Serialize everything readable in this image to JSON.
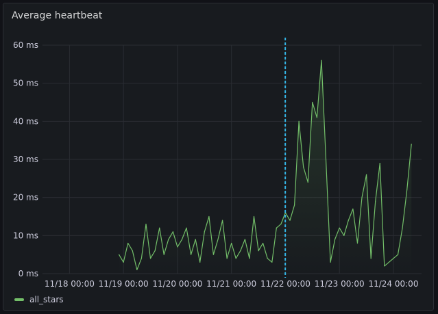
{
  "panel": {
    "title": "Average heartbeat"
  },
  "colors": {
    "series": "#73bf69",
    "annotation": "#33b5e5",
    "grid": "#2a2d33",
    "tick_text": "#ccccdc",
    "panel_bg": "#181b1f"
  },
  "chart_data": {
    "type": "area",
    "grid": true,
    "legend_position": "bottom-left",
    "y_unit": "ms",
    "ylim": [
      0,
      60
    ],
    "yticks": [
      0,
      10,
      20,
      30,
      40,
      50,
      60
    ],
    "ytick_labels": [
      "0 ms",
      "10 ms",
      "20 ms",
      "30 ms",
      "40 ms",
      "50 ms",
      "60 ms"
    ],
    "x_domain_days": [
      "11/17 12:00",
      "11/24 12:30"
    ],
    "xtick_labels": [
      "11/18 00:00",
      "11/19 00:00",
      "11/20 00:00",
      "11/21 00:00",
      "11/22 00:00",
      "11/23 00:00",
      "11/24 00:00"
    ],
    "annotation": {
      "x": "11/21 23:55",
      "style": "dashed"
    },
    "series": [
      {
        "name": "all_stars",
        "x": [
          "11/18 22:00",
          "11/19 00:00",
          "11/19 02:00",
          "11/19 04:00",
          "11/19 06:00",
          "11/19 08:00",
          "11/19 10:00",
          "11/19 12:00",
          "11/19 14:00",
          "11/19 16:00",
          "11/19 18:00",
          "11/19 20:00",
          "11/19 22:00",
          "11/20 00:00",
          "11/20 02:00",
          "11/20 04:00",
          "11/20 06:00",
          "11/20 08:00",
          "11/20 10:00",
          "11/20 12:00",
          "11/20 14:00",
          "11/20 16:00",
          "11/20 18:00",
          "11/20 20:00",
          "11/20 22:00",
          "11/21 00:00",
          "11/21 02:00",
          "11/21 04:00",
          "11/21 06:00",
          "11/21 08:00",
          "11/21 10:00",
          "11/21 12:00",
          "11/21 14:00",
          "11/21 16:00",
          "11/21 18:00",
          "11/21 20:00",
          "11/21 22:00",
          "11/22 00:00",
          "11/22 02:00",
          "11/22 04:00",
          "11/22 06:00",
          "11/22 08:00",
          "11/22 10:00",
          "11/22 12:00",
          "11/22 14:00",
          "11/22 16:00",
          "11/22 18:00",
          "11/22 20:00",
          "11/22 22:00",
          "11/23 00:00",
          "11/23 02:00",
          "11/23 04:00",
          "11/23 06:00",
          "11/23 08:00",
          "11/23 10:00",
          "11/23 12:00",
          "11/23 14:00",
          "11/23 16:00",
          "11/23 18:00",
          "11/23 20:00",
          "11/23 22:00",
          "11/24 00:00",
          "11/24 02:00",
          "11/24 04:00",
          "11/24 06:00",
          "11/24 08:00"
        ],
        "y": [
          5,
          3,
          8,
          6,
          1,
          4,
          13,
          4,
          6,
          12,
          5,
          9,
          11,
          7,
          9,
          12,
          5,
          9,
          3,
          11,
          15,
          5,
          9,
          14,
          4,
          8,
          4,
          6,
          9,
          4,
          15,
          6,
          8,
          4,
          3,
          12,
          13,
          16,
          14,
          18,
          40,
          28,
          24,
          45,
          41,
          56,
          30,
          3,
          9,
          12,
          10,
          14,
          17,
          8,
          20,
          26,
          4,
          19,
          29,
          2,
          3,
          4,
          5,
          12,
          22,
          34
        ]
      }
    ]
  }
}
